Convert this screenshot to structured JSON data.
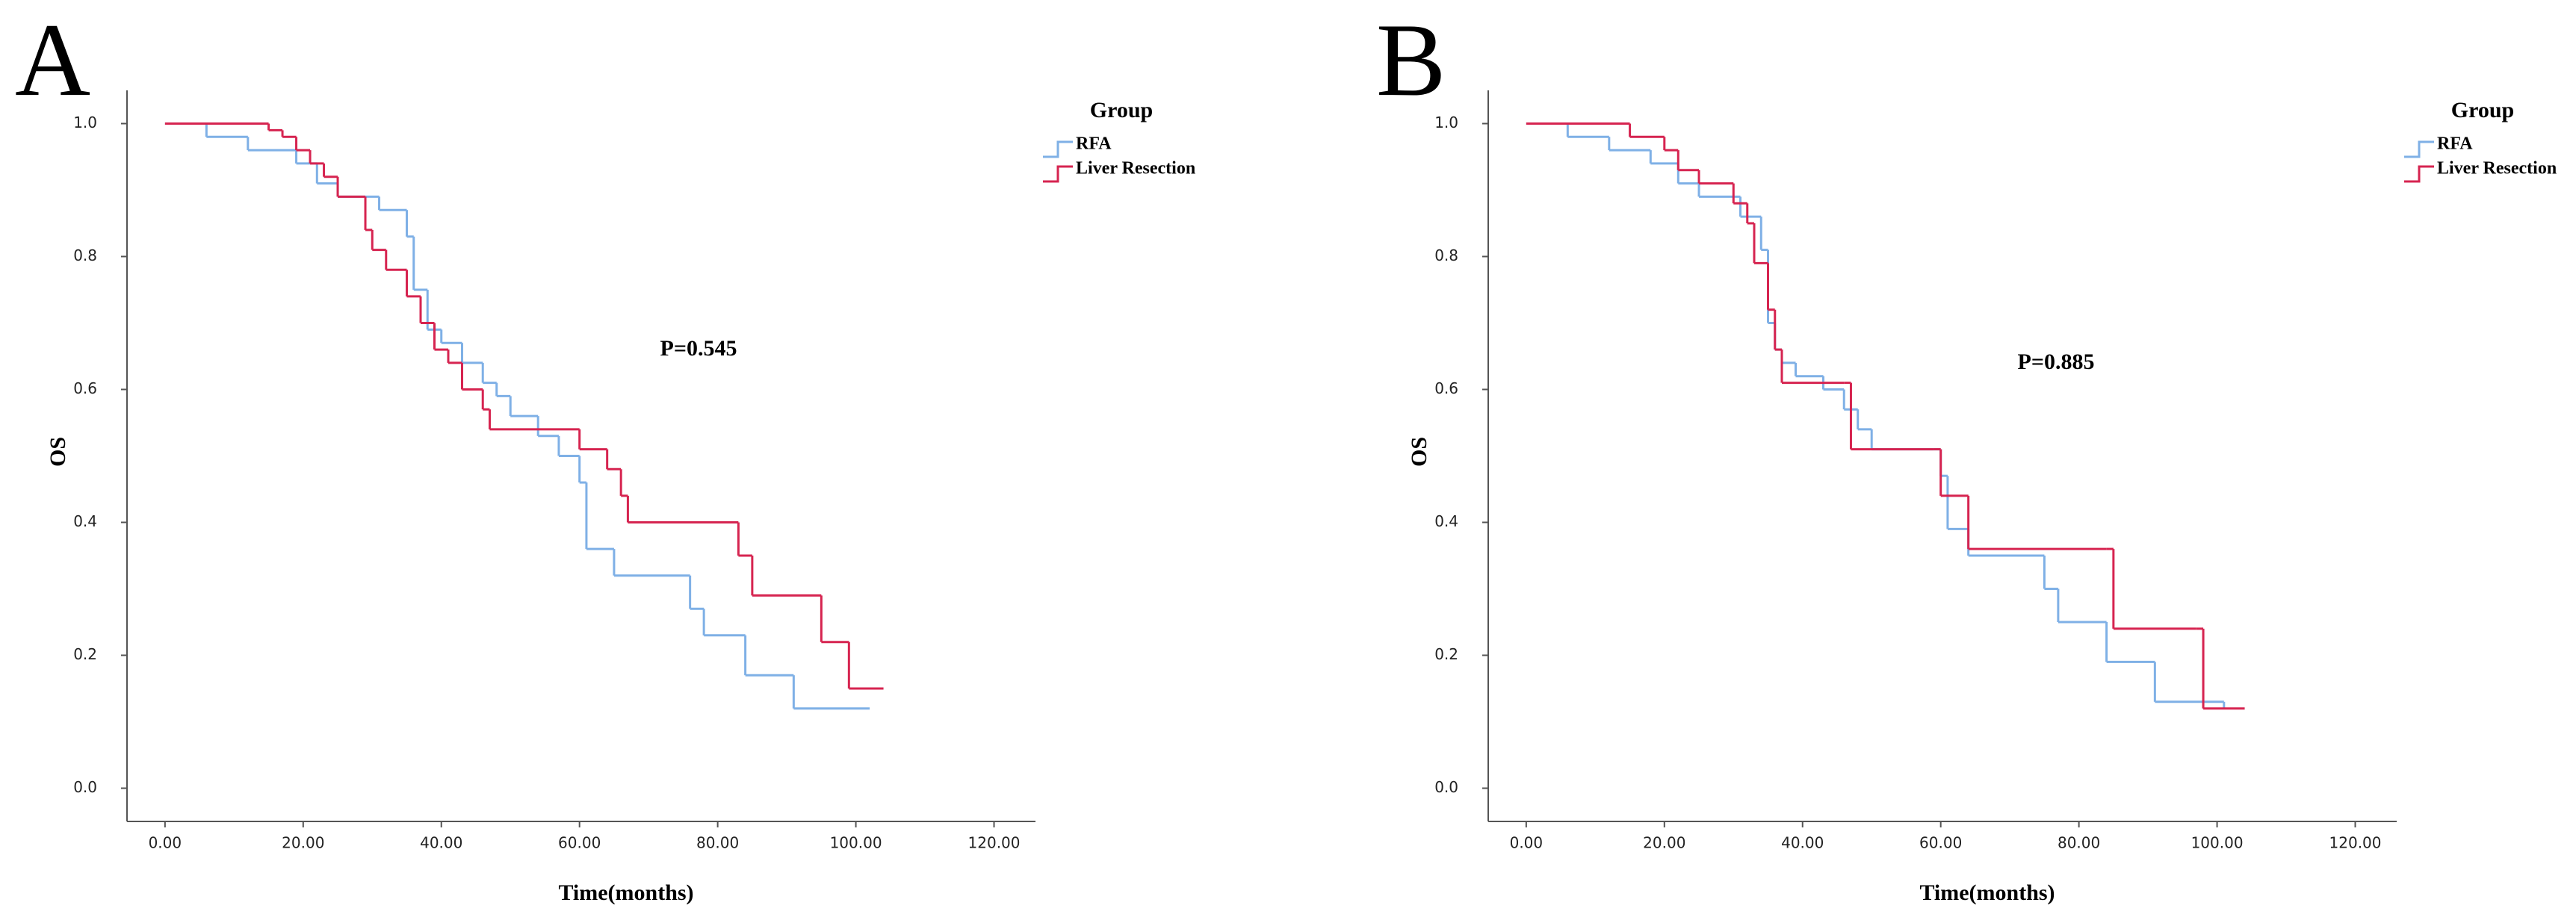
{
  "chart_data": [
    {
      "type": "line",
      "step": true,
      "panel_label": "A",
      "annotation": "P=0.545",
      "legend_title": "Group",
      "legend": "right",
      "xlabel": "Time(months)",
      "ylabel": "OS",
      "xlim": [
        -5.5,
        126
      ],
      "ylim": [
        -0.05,
        1.05
      ],
      "xticks": [
        {
          "value": 0,
          "label": "0.00"
        },
        {
          "value": 20,
          "label": "20.00"
        },
        {
          "value": 40,
          "label": "40.00"
        },
        {
          "value": 60,
          "label": "60.00"
        },
        {
          "value": 80,
          "label": "80.00"
        },
        {
          "value": 100,
          "label": "100.00"
        },
        {
          "value": 120,
          "label": "120.00"
        }
      ],
      "yticks": [
        {
          "value": 0,
          "label": "0.0"
        },
        {
          "value": 0.2,
          "label": "0.2"
        },
        {
          "value": 0.4,
          "label": "0.4"
        },
        {
          "value": 0.6,
          "label": "0.6"
        },
        {
          "value": 0.8,
          "label": "0.8"
        },
        {
          "value": 1,
          "label": "1.0"
        }
      ],
      "series": [
        {
          "name": "RFA",
          "color": "#7fb0e6",
          "x": [
            0,
            6,
            12,
            19,
            22,
            25,
            31,
            35,
            36,
            38,
            40,
            43,
            46,
            48,
            50,
            54,
            57,
            60,
            61,
            65,
            76,
            78,
            84,
            91,
            102
          ],
          "values": [
            1.0,
            0.98,
            0.96,
            0.94,
            0.91,
            0.89,
            0.87,
            0.83,
            0.75,
            0.69,
            0.67,
            0.64,
            0.61,
            0.59,
            0.56,
            0.53,
            0.5,
            0.46,
            0.36,
            0.32,
            0.27,
            0.23,
            0.17,
            0.12,
            0.12
          ]
        },
        {
          "name": "Liver Resection",
          "color": "#d62450",
          "x": [
            0,
            15,
            17,
            19,
            21,
            23,
            25,
            29,
            30,
            32,
            35,
            37,
            39,
            41,
            43,
            46,
            47,
            60,
            64,
            66,
            67,
            83,
            85,
            95,
            99,
            104
          ],
          "values": [
            1.0,
            0.99,
            0.98,
            0.96,
            0.94,
            0.92,
            0.89,
            0.84,
            0.81,
            0.78,
            0.74,
            0.7,
            0.66,
            0.64,
            0.6,
            0.57,
            0.54,
            0.51,
            0.48,
            0.44,
            0.4,
            0.35,
            0.29,
            0.22,
            0.15,
            0.15
          ]
        }
      ]
    },
    {
      "type": "line",
      "step": true,
      "panel_label": "B",
      "annotation": "P=0.885",
      "legend_title": "Group",
      "legend": "right",
      "xlabel": "Time(months)",
      "ylabel": "OS",
      "xlim": [
        -5.5,
        126
      ],
      "ylim": [
        -0.05,
        1.05
      ],
      "xticks": [
        {
          "value": 0,
          "label": "0.00"
        },
        {
          "value": 20,
          "label": "20.00"
        },
        {
          "value": 40,
          "label": "40.00"
        },
        {
          "value": 60,
          "label": "60.00"
        },
        {
          "value": 80,
          "label": "80.00"
        },
        {
          "value": 100,
          "label": "100.00"
        },
        {
          "value": 120,
          "label": "120.00"
        }
      ],
      "yticks": [
        {
          "value": 0,
          "label": "0.0"
        },
        {
          "value": 0.2,
          "label": "0.2"
        },
        {
          "value": 0.4,
          "label": "0.4"
        },
        {
          "value": 0.6,
          "label": "0.6"
        },
        {
          "value": 0.8,
          "label": "0.8"
        },
        {
          "value": 1,
          "label": "1.0"
        }
      ],
      "series": [
        {
          "name": "RFA",
          "color": "#7fb0e6",
          "x": [
            0,
            6,
            12,
            18,
            22,
            25,
            31,
            34,
            35,
            36,
            37,
            39,
            43,
            46,
            48,
            50,
            60,
            61,
            64,
            75,
            77,
            84,
            91,
            101
          ],
          "values": [
            1.0,
            0.98,
            0.96,
            0.94,
            0.91,
            0.89,
            0.86,
            0.81,
            0.7,
            0.66,
            0.64,
            0.62,
            0.6,
            0.57,
            0.54,
            0.51,
            0.47,
            0.39,
            0.35,
            0.3,
            0.25,
            0.19,
            0.13,
            0.12
          ]
        },
        {
          "name": "Liver Resection",
          "color": "#d62450",
          "x": [
            0,
            15,
            20,
            22,
            25,
            30,
            32,
            33,
            35,
            36,
            37,
            46,
            47,
            59,
            60,
            64,
            84,
            85,
            97,
            98,
            104
          ],
          "values": [
            1.0,
            0.98,
            0.96,
            0.93,
            0.91,
            0.88,
            0.85,
            0.79,
            0.72,
            0.66,
            0.61,
            0.61,
            0.51,
            0.51,
            0.44,
            0.36,
            0.36,
            0.24,
            0.24,
            0.12,
            0.12
          ]
        }
      ]
    }
  ]
}
